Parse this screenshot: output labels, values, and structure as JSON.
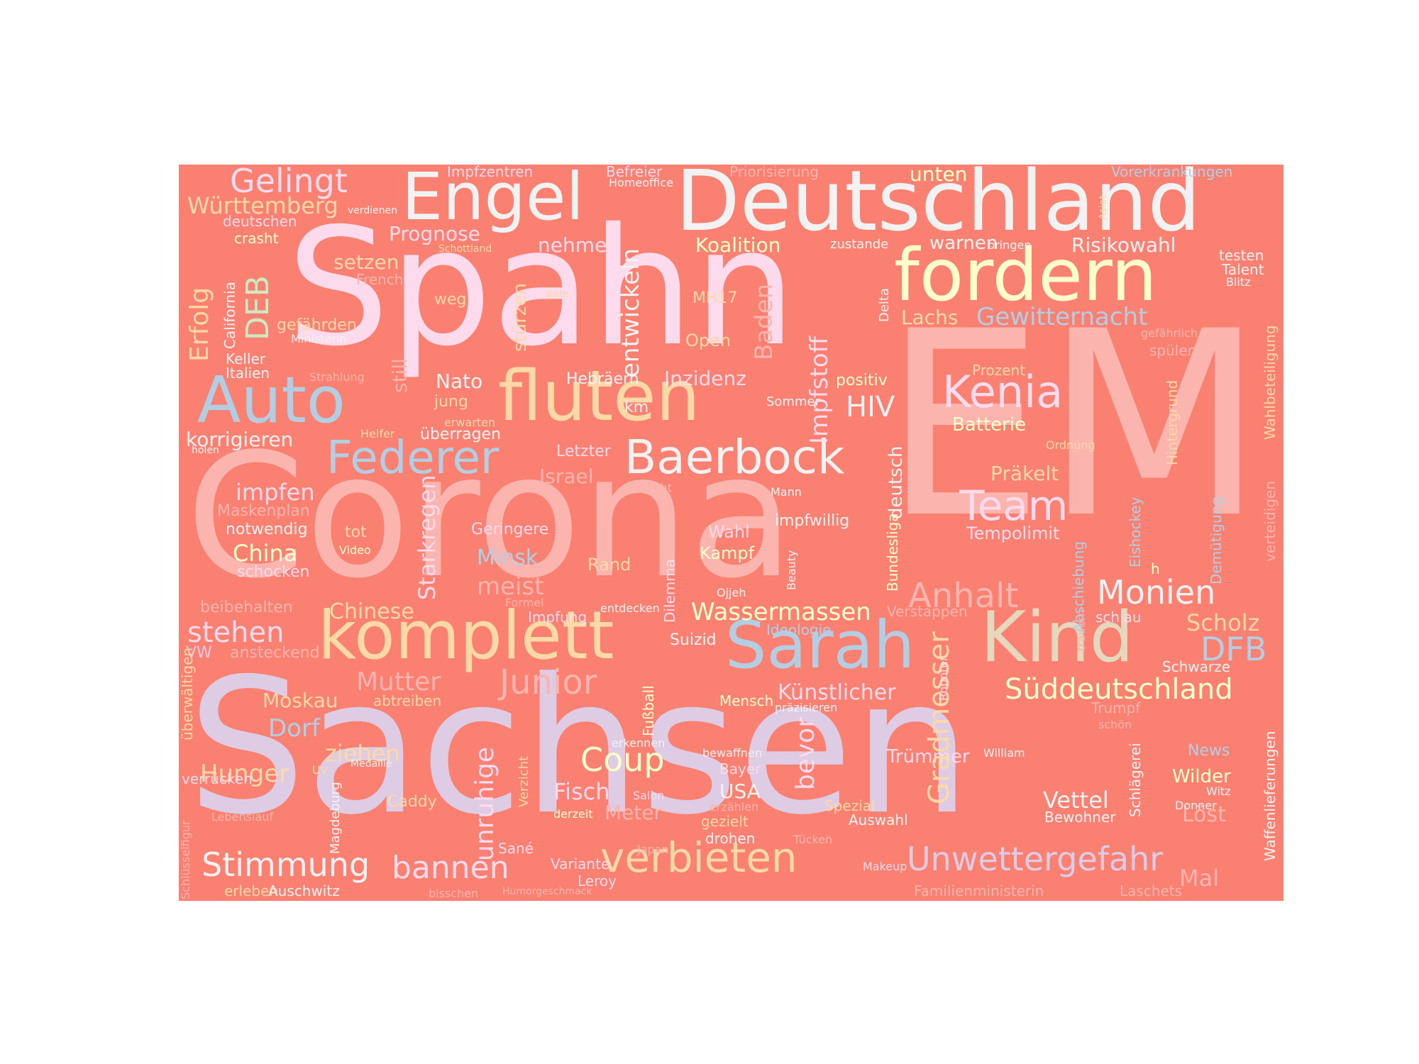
{
  "palette": {
    "background": "#fa8072",
    "pink": "#fddaec",
    "salmon_light": "#fbb4ae",
    "lavender": "#decbe4",
    "blue": "#b3cde3",
    "yellow": "#ffffcc",
    "peach": "#fed9a6",
    "tan": "#e5d8bd",
    "green": "#ccebc5",
    "white": "#f2f2f2"
  },
  "words": [
    {
      "id": "sachsen",
      "text": "Sachsen",
      "color": "lavender"
    },
    {
      "id": "em",
      "text": "EM",
      "color": "salmon_light"
    },
    {
      "id": "corona",
      "text": "Corona",
      "color": "salmon_light"
    },
    {
      "id": "spahn",
      "text": "Spahn",
      "color": "pink"
    },
    {
      "id": "deutschland",
      "text": "Deutschland",
      "color": "white"
    },
    {
      "id": "engel",
      "text": "Engel",
      "color": "white"
    },
    {
      "id": "fordern",
      "text": "fordern",
      "color": "yellow"
    },
    {
      "id": "fluten",
      "text": "fluten",
      "color": "peach"
    },
    {
      "id": "auto",
      "text": "Auto",
      "color": "blue"
    },
    {
      "id": "komplett",
      "text": "komplett",
      "color": "peach"
    },
    {
      "id": "kind",
      "text": "Kind",
      "color": "tan"
    },
    {
      "id": "sarah",
      "text": "Sarah",
      "color": "blue"
    },
    {
      "id": "baerbock",
      "text": "Baerbock",
      "color": "white"
    },
    {
      "id": "federer",
      "text": "Federer",
      "color": "blue"
    },
    {
      "id": "kenia",
      "text": "Kenia",
      "color": "pink"
    },
    {
      "id": "team",
      "text": "Team",
      "color": "pink"
    },
    {
      "id": "verbieten",
      "text": "verbieten",
      "color": "peach"
    },
    {
      "id": "unwettergefahr",
      "text": "Unwettergefahr",
      "color": "lavender"
    },
    {
      "id": "stimmung",
      "text": "Stimmung",
      "color": "white"
    },
    {
      "id": "bannen",
      "text": "bannen",
      "color": "pink"
    },
    {
      "id": "gelingt",
      "text": "Gelingt",
      "color": "pink"
    },
    {
      "id": "wuerttemberg",
      "text": "Württemberg",
      "color": "peach"
    },
    {
      "id": "monien",
      "text": "Monien",
      "color": "white"
    },
    {
      "id": "anhalt",
      "text": "Anhalt",
      "color": "salmon_light"
    },
    {
      "id": "sueddeutschland",
      "text": "Süddeutschland",
      "color": "yellow"
    },
    {
      "id": "wassermassen",
      "text": "Wassermassen",
      "color": "yellow"
    },
    {
      "id": "junior",
      "text": "Junior",
      "color": "salmon_light"
    },
    {
      "id": "stehen",
      "text": "stehen",
      "color": "pink"
    },
    {
      "id": "coup",
      "text": "Coup",
      "color": "yellow"
    },
    {
      "id": "gewitternacht",
      "text": "Gewitternacht",
      "color": "blue"
    },
    {
      "id": "koalition",
      "text": "Koalition",
      "color": "yellow"
    },
    {
      "id": "risikowahl",
      "text": "Risikowahl",
      "color": "white"
    },
    {
      "id": "inzidenz",
      "text": "Inzidenz",
      "color": "pink"
    },
    {
      "id": "hiv",
      "text": "HIV",
      "color": "white"
    },
    {
      "id": "praekelt",
      "text": "Präkelt",
      "color": "peach"
    },
    {
      "id": "scholz",
      "text": "Scholz",
      "color": "peach"
    },
    {
      "id": "dfb",
      "text": "DFB",
      "color": "blue"
    },
    {
      "id": "mutter",
      "text": "Mutter",
      "color": "salmon_light"
    },
    {
      "id": "moskau",
      "text": "Moskau",
      "color": "peach"
    },
    {
      "id": "dorf",
      "text": "Dorf",
      "color": "blue"
    },
    {
      "id": "ziehen",
      "text": "ziehen",
      "color": "peach"
    },
    {
      "id": "hunger",
      "text": "Hunger",
      "color": "peach"
    },
    {
      "id": "fisch",
      "text": "Fisch",
      "color": "pink"
    },
    {
      "id": "usa",
      "text": "USA",
      "color": "white"
    },
    {
      "id": "vettel",
      "text": "Vettel",
      "color": "white"
    },
    {
      "id": "impfen",
      "text": "impfen",
      "color": "pink"
    },
    {
      "id": "china",
      "text": "China",
      "color": "yellow"
    },
    {
      "id": "minsk",
      "text": "Minsk",
      "color": "blue"
    },
    {
      "id": "meist",
      "text": "meist",
      "color": "salmon_light"
    },
    {
      "id": "chinese",
      "text": "Chinese",
      "color": "peach"
    },
    {
      "id": "nato",
      "text": "Nato",
      "color": "white"
    },
    {
      "id": "prognose",
      "text": "Prognose",
      "color": "pink"
    },
    {
      "id": "setzen",
      "text": "setzen",
      "color": "peach"
    },
    {
      "id": "nehmen",
      "text": "nehmen",
      "color": "pink"
    },
    {
      "id": "lachs",
      "text": "Lachs",
      "color": "peach"
    },
    {
      "id": "warnen",
      "text": "warnen",
      "color": "white"
    },
    {
      "id": "unten",
      "text": "unten",
      "color": "yellow"
    },
    {
      "id": "batterie",
      "text": "Batterie",
      "color": "yellow"
    },
    {
      "id": "israel",
      "text": "Israel",
      "color": "salmon_light"
    },
    {
      "id": "korrigieren",
      "text": "korrigieren",
      "color": "white"
    },
    {
      "id": "kuenstlicher",
      "text": "Künstlicher",
      "color": "pink"
    },
    {
      "id": "meter",
      "text": "Meter",
      "color": "salmon_light"
    },
    {
      "id": "loest",
      "text": "Löst",
      "color": "salmon_light"
    },
    {
      "id": "mal",
      "text": "Mal",
      "color": "salmon_light"
    },
    {
      "id": "wilder",
      "text": "Wilder",
      "color": "yellow"
    },
    {
      "id": "truemmer",
      "text": "Trümmer",
      "color": "pink"
    },
    {
      "id": "tempolimit",
      "text": "Tempolimit",
      "color": "pink"
    },
    {
      "id": "open",
      "text": "Open",
      "color": "peach"
    },
    {
      "id": "mh17",
      "text": "MH17",
      "color": "peach"
    },
    {
      "id": "weg",
      "text": "weg",
      "color": "peach"
    },
    {
      "id": "jung",
      "text": "jung",
      "color": "peach"
    },
    {
      "id": "ueberragen",
      "text": "überragen",
      "color": "white"
    },
    {
      "id": "letzter",
      "text": "Letzter",
      "color": "pink"
    },
    {
      "id": "km",
      "text": "km",
      "color": "white"
    },
    {
      "id": "hebraeern",
      "text": "Hebräern",
      "color": "white"
    },
    {
      "id": "positiv",
      "text": "positiv",
      "color": "yellow"
    },
    {
      "id": "prozent",
      "text": "Prozent",
      "color": "peach"
    },
    {
      "id": "sommer",
      "text": "Sommer",
      "color": "white"
    },
    {
      "id": "impfwillig",
      "text": "impfwillig",
      "color": "white"
    },
    {
      "id": "wahl",
      "text": "Wahl",
      "color": "pink"
    },
    {
      "id": "kampf",
      "text": "Kampf",
      "color": "yellow"
    },
    {
      "id": "rand",
      "text": "Rand",
      "color": "peach"
    },
    {
      "id": "geringere",
      "text": "Geringere",
      "color": "pink"
    },
    {
      "id": "tot",
      "text": "tot",
      "color": "peach"
    },
    {
      "id": "video",
      "text": "Video",
      "color": "yellow"
    },
    {
      "id": "schocken",
      "text": "schocken",
      "color": "pink"
    },
    {
      "id": "notwendig",
      "text": "notwendig",
      "color": "white"
    },
    {
      "id": "maskenplan",
      "text": "Maskenplan",
      "color": "salmon_light"
    },
    {
      "id": "beibehalten",
      "text": "beibehalten",
      "color": "salmon_light"
    },
    {
      "id": "ansteckend",
      "text": "ansteckend",
      "color": "salmon_light"
    },
    {
      "id": "vw",
      "text": "VW",
      "color": "lavender"
    },
    {
      "id": "keller",
      "text": "Keller",
      "color": "white"
    },
    {
      "id": "italien",
      "text": "Italien",
      "color": "white"
    },
    {
      "id": "gefaehrden",
      "text": "gefährden",
      "color": "peach"
    },
    {
      "id": "ministerin",
      "text": "Ministerin",
      "color": "white"
    },
    {
      "id": "crasht",
      "text": "crasht",
      "color": "yellow"
    },
    {
      "id": "deutschen",
      "text": "deutschen",
      "color": "pink"
    },
    {
      "id": "impfzentren",
      "text": "Impfzentren",
      "color": "pink"
    },
    {
      "id": "befreier",
      "text": "Befreier",
      "color": "pink"
    },
    {
      "id": "homeoffice",
      "text": "Homeoffice",
      "color": "white"
    },
    {
      "id": "priorisierung",
      "text": "Priorisierung",
      "color": "salmon_light"
    },
    {
      "id": "vorerkrankungen",
      "text": "Vorerkrankungen",
      "color": "blue"
    },
    {
      "id": "testen",
      "text": "testen",
      "color": "white"
    },
    {
      "id": "talent",
      "text": "Talent",
      "color": "white"
    },
    {
      "id": "blitz",
      "text": "Blitz",
      "color": "white"
    },
    {
      "id": "bringen",
      "text": "bringen",
      "color": "white"
    },
    {
      "id": "zustande",
      "text": "zustande",
      "color": "white"
    },
    {
      "id": "gefaehrlich",
      "text": "gefährlich",
      "color": "salmon_light"
    },
    {
      "id": "spuelen",
      "text": "spülen",
      "color": "salmon_light"
    },
    {
      "id": "ordnung",
      "text": "Ordnung",
      "color": "peach"
    },
    {
      "id": "strahlung",
      "text": "Strahlung",
      "color": "salmon_light"
    },
    {
      "id": "helfer",
      "text": "Helfer",
      "color": "peach"
    },
    {
      "id": "holen",
      "text": "holen",
      "color": "white"
    },
    {
      "id": "erwarten",
      "text": "erwarten",
      "color": "peach"
    },
    {
      "id": "flucht",
      "text": "Flucht",
      "color": "salmon_light"
    },
    {
      "id": "mann",
      "text": "Mann",
      "color": "white"
    },
    {
      "id": "ojjeh",
      "text": "Ojjeh",
      "color": "white"
    },
    {
      "id": "formel",
      "text": "Formel",
      "color": "salmon_light"
    },
    {
      "id": "impfung",
      "text": "Impfung",
      "color": "pink"
    },
    {
      "id": "entdecken",
      "text": "entdecken",
      "color": "white"
    },
    {
      "id": "suizid",
      "text": "Suizid",
      "color": "white"
    },
    {
      "id": "ideologie",
      "text": "Ideologie",
      "color": "blue"
    },
    {
      "id": "verstappen",
      "text": "Verstappen",
      "color": "salmon_light"
    },
    {
      "id": "schlau",
      "text": "schlau",
      "color": "pink"
    },
    {
      "id": "schwarze",
      "text": "Schwarze",
      "color": "white"
    },
    {
      "id": "trumpf",
      "text": "Trumpf",
      "color": "salmon_light"
    },
    {
      "id": "schoen",
      "text": "schön",
      "color": "salmon_light"
    },
    {
      "id": "news",
      "text": "News",
      "color": "blue"
    },
    {
      "id": "witz",
      "text": "Witz",
      "color": "white"
    },
    {
      "id": "donner",
      "text": "Donner",
      "color": "white"
    },
    {
      "id": "bewohner",
      "text": "Bewohner",
      "color": "white"
    },
    {
      "id": "william",
      "text": "William",
      "color": "white"
    },
    {
      "id": "abtreiben",
      "text": "abtreiben",
      "color": "peach"
    },
    {
      "id": "mensch",
      "text": "Mensch",
      "color": "yellow"
    },
    {
      "id": "praezisieren",
      "text": "präzisieren",
      "color": "white"
    },
    {
      "id": "erkennen",
      "text": "erkennen",
      "color": "white"
    },
    {
      "id": "bewaffnen",
      "text": "bewaffnen",
      "color": "white"
    },
    {
      "id": "bayer",
      "text": "Bayer",
      "color": "pink"
    },
    {
      "id": "salon",
      "text": "Salon",
      "color": "pink"
    },
    {
      "id": "erzaehlen",
      "text": "erzählen",
      "color": "salmon_light"
    },
    {
      "id": "gezielt",
      "text": "gezielt",
      "color": "peach"
    },
    {
      "id": "drohen",
      "text": "drohen",
      "color": "white"
    },
    {
      "id": "spezial",
      "text": "Spezial",
      "color": "peach"
    },
    {
      "id": "auswahl",
      "text": "Auswahl",
      "color": "white"
    },
    {
      "id": "tuecken",
      "text": "Tücken",
      "color": "salmon_light"
    },
    {
      "id": "makeup",
      "text": "Makeup",
      "color": "pink"
    },
    {
      "id": "japan",
      "text": "Japan",
      "color": "salmon_light"
    },
    {
      "id": "variante",
      "text": "Variante",
      "color": "pink"
    },
    {
      "id": "leroy",
      "text": "Leroy",
      "color": "pink"
    },
    {
      "id": "sane",
      "text": "Sané",
      "color": "pink"
    },
    {
      "id": "derzeit",
      "text": "derzeit",
      "color": "yellow"
    },
    {
      "id": "caddy",
      "text": "Caddy",
      "color": "peach"
    },
    {
      "id": "uv",
      "text": "UV",
      "color": "peach"
    },
    {
      "id": "medaille",
      "text": "Medaille",
      "color": "white"
    },
    {
      "id": "verruecken",
      "text": "verrücken",
      "color": "pink"
    },
    {
      "id": "lebenslauf",
      "text": "Lebenslauf",
      "color": "salmon_light"
    },
    {
      "id": "erleben",
      "text": "erleben",
      "color": "peach"
    },
    {
      "id": "auschwitz",
      "text": "Auschwitz",
      "color": "white"
    },
    {
      "id": "bisschen",
      "text": "bisschen",
      "color": "salmon_light"
    },
    {
      "id": "humorgeschmack",
      "text": "Humorgeschmack",
      "color": "salmon_light"
    },
    {
      "id": "familienministerin",
      "text": "Familienministerin",
      "color": "salmon_light"
    },
    {
      "id": "laschets",
      "text": "Laschets",
      "color": "salmon_light"
    },
    {
      "id": "kate",
      "text": "Kate",
      "color": "peach"
    },
    {
      "id": "french",
      "text": "French",
      "color": "salmon_light"
    },
    {
      "id": "schottland",
      "text": "Schottland",
      "color": "peach"
    },
    {
      "id": "verdienen",
      "text": "verdienen",
      "color": "white"
    },
    {
      "id": "h",
      "text": "h",
      "color": "yellow"
    },
    {
      "id": "entwickeln",
      "text": "entwickeln",
      "color": "white"
    },
    {
      "id": "impfstoff",
      "text": "Impfstoff",
      "color": "pink"
    },
    {
      "id": "stuerzen",
      "text": "stürzen",
      "color": "peach"
    },
    {
      "id": "still",
      "text": "still",
      "color": "salmon_light"
    },
    {
      "id": "baden",
      "text": "Baden",
      "color": "salmon_light"
    },
    {
      "id": "erfolg",
      "text": "Erfolg",
      "color": "peach"
    },
    {
      "id": "deb",
      "text": "DEB",
      "color": "green"
    },
    {
      "id": "california",
      "text": "California",
      "color": "white"
    },
    {
      "id": "delta",
      "text": "Delta",
      "color": "white"
    },
    {
      "id": "deutsch",
      "text": "deutsch",
      "color": "white"
    },
    {
      "id": "bundesliga",
      "text": "Bundesliga",
      "color": "yellow"
    },
    {
      "id": "gradmesser",
      "text": "Gradmesser",
      "color": "peach"
    },
    {
      "id": "starkregen",
      "text": "Starkregen",
      "color": "pink"
    },
    {
      "id": "unruhige",
      "text": "unruhige",
      "color": "pink"
    },
    {
      "id": "bevor",
      "text": "bevor",
      "color": "pink"
    },
    {
      "id": "dilemma",
      "text": "Dilemma",
      "color": "pink"
    },
    {
      "id": "fussball",
      "text": "Fußball",
      "color": "yellow"
    },
    {
      "id": "verzicht",
      "text": "Verzicht",
      "color": "peach"
    },
    {
      "id": "magdeburg",
      "text": "Magdeburg",
      "color": "white"
    },
    {
      "id": "beauty",
      "text": "Beauty",
      "color": "white"
    },
    {
      "id": "roboter",
      "text": "Roboter",
      "color": "pink"
    },
    {
      "id": "trauern",
      "text": "trauern",
      "color": "salmon_light"
    },
    {
      "id": "abschiebung",
      "text": "Abschiebung",
      "color": "blue"
    },
    {
      "id": "eishockey",
      "text": "Eishockey",
      "color": "blue"
    },
    {
      "id": "schlaegerei",
      "text": "Schlägerei",
      "color": "white"
    },
    {
      "id": "hintergrund",
      "text": "Hintergrund",
      "color": "peach"
    },
    {
      "id": "asiat",
      "text": "Asiat",
      "color": "peach"
    },
    {
      "id": "wahlbeteiligung",
      "text": "Wahlbeteiligung",
      "color": "peach"
    },
    {
      "id": "demuetigung",
      "text": "Demütigung",
      "color": "blue"
    },
    {
      "id": "verteidigen",
      "text": "verteidigen",
      "color": "salmon_light"
    },
    {
      "id": "waffenlieferungen",
      "text": "Waffenlieferungen",
      "color": "white"
    },
    {
      "id": "ueberwaeltigen",
      "text": "überwältigen",
      "color": "peach"
    },
    {
      "id": "schluesselfigur",
      "text": "Schlüsselfigur",
      "color": "salmon_light"
    }
  ]
}
